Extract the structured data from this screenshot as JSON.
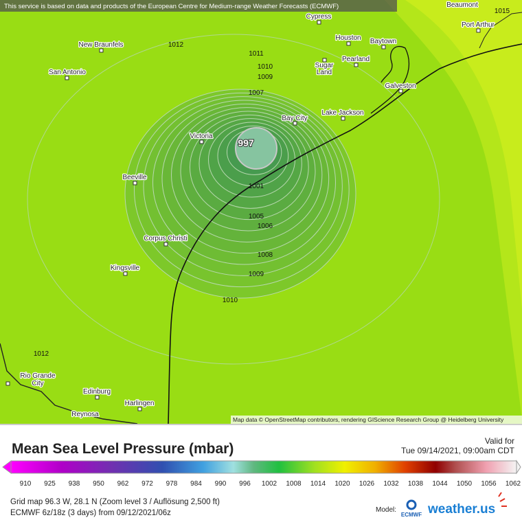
{
  "banner": "This service is based on data and products of the European Centre for Medium-range Weather Forecasts (ECMWF)",
  "cities": [
    "Beaumont",
    "Cypress",
    "Port Arthur",
    "New Braunfels",
    "Houston",
    "Baytown",
    "San Antonio",
    "Sugar",
    "Land",
    "Pearland",
    "Galveston",
    "Lake Jackson",
    "Bay City",
    "Victoria",
    "Beeville",
    "Corpus Christi",
    "Kingsville",
    "Rio Grande",
    "City",
    "Edinburg",
    "Harlingen",
    "Reynosa"
  ],
  "isobar_labels": [
    1015,
    1012,
    1011,
    1010,
    1009,
    1007,
    997,
    1001,
    1005,
    1006,
    1008,
    1009,
    1010,
    1012
  ],
  "attribution": "Map data © OpenStreetMap contributors, rendering GIScience Research Group @ Heidelberg University",
  "legend": {
    "title": "Mean Sea Level Pressure (mbar)",
    "valid_label": "Valid for",
    "valid_time": "Tue 09/14/2021, 09:00am CDT",
    "scale_labels": [
      910,
      925,
      938,
      950,
      962,
      972,
      978,
      984,
      990,
      996,
      1002,
      1008,
      1014,
      1020,
      1026,
      1032,
      1038,
      1044,
      1050,
      1056,
      1062
    ]
  },
  "footer": {
    "grid": "Grid map 96.3 W, 28.1 N (Zoom level 3 / Auflösung 2,500 ft)",
    "model_run": "ECMWF 6z/18z (3 days) from 09/12/2021/06z",
    "model_label": "Model:",
    "logo_ecmwf": "ECMWF",
    "logo_weather": "weather.us"
  }
}
